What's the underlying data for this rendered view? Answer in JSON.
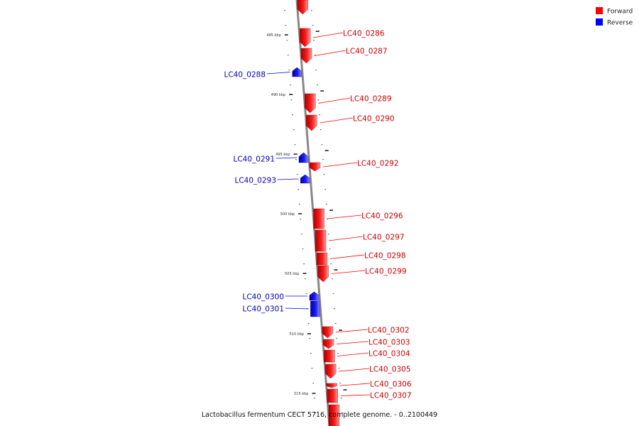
{
  "caption": "Lactobacillus fermentum CECT 5716, complete genome. - 0..2100449",
  "legend": [
    {
      "label": "Forward",
      "color": "#ff0000"
    },
    {
      "label": "Reverse",
      "color": "#0000ff"
    }
  ],
  "colors": {
    "forward": "#ff0000",
    "reverse": "#0000ff",
    "axis": "#888888",
    "forward_label": "#cc0000",
    "reverse_label": "#0000bb"
  },
  "ticks": [
    {
      "label": "485 kbp"
    },
    {
      "label": "490 kbp"
    },
    {
      "label": "495 kbp"
    },
    {
      "label": "500 kbp"
    },
    {
      "label": "505 kbp"
    },
    {
      "label": "510 kbp"
    },
    {
      "label": "515 kbp"
    }
  ],
  "genes": [
    {
      "name": "",
      "strand": "forward"
    },
    {
      "name": "LC40_0286",
      "strand": "forward"
    },
    {
      "name": "LC40_0287",
      "strand": "forward"
    },
    {
      "name": "LC40_0288",
      "strand": "reverse"
    },
    {
      "name": "LC40_0289",
      "strand": "forward"
    },
    {
      "name": "LC40_0290",
      "strand": "forward"
    },
    {
      "name": "LC40_0291",
      "strand": "reverse"
    },
    {
      "name": "LC40_0292",
      "strand": "forward"
    },
    {
      "name": "LC40_0293",
      "strand": "reverse"
    },
    {
      "name": "LC40_0296",
      "strand": "forward"
    },
    {
      "name": "LC40_0297",
      "strand": "forward"
    },
    {
      "name": "LC40_0298",
      "strand": "forward"
    },
    {
      "name": "LC40_0299",
      "strand": "forward"
    },
    {
      "name": "LC40_0300",
      "strand": "reverse"
    },
    {
      "name": "LC40_0301",
      "strand": "reverse"
    },
    {
      "name": "LC40_0302",
      "strand": "forward"
    },
    {
      "name": "LC40_0303",
      "strand": "forward"
    },
    {
      "name": "LC40_0304",
      "strand": "forward"
    },
    {
      "name": "LC40_0305",
      "strand": "forward"
    },
    {
      "name": "LC40_0306",
      "strand": "forward"
    },
    {
      "name": "LC40_0307",
      "strand": "forward"
    },
    {
      "name": "",
      "strand": "forward"
    }
  ]
}
